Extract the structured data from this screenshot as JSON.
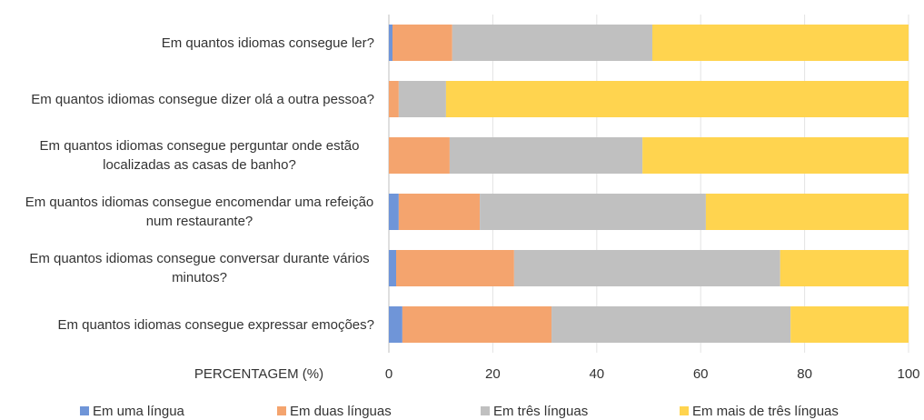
{
  "chart_data": {
    "type": "stacked_barh",
    "categories": [
      "Em quantos idiomas consegue ler?",
      "Em quantos idiomas consegue dizer olá a outra pessoa?",
      "Em quantos idiomas consegue perguntar onde estão localizadas as casas de banho?",
      "Em quantos idiomas consegue encomendar uma refeição num restaurante?",
      "Em quantos idiomas consegue conversar durante vários minutos?",
      "Em quantos idiomas consegue expressar emoções?"
    ],
    "series": [
      {
        "name": "Em uma língua",
        "color": "#6f95d8",
        "values": [
          0.7,
          0,
          0,
          1.9,
          1.4,
          2.6
        ]
      },
      {
        "name": "Em duas línguas",
        "color": "#f4a46e",
        "values": [
          11.5,
          1.9,
          11.7,
          15.6,
          22.7,
          28.7
        ]
      },
      {
        "name": "Em três línguas",
        "color": "#c0c0c0",
        "values": [
          38.5,
          9.1,
          37.1,
          43.5,
          51.2,
          46
        ]
      },
      {
        "name": "Em mais de três línguas",
        "color": "#ffd44f",
        "values": [
          49.3,
          89,
          51.2,
          39,
          24.7,
          22.7
        ]
      }
    ],
    "xlabel": "PERCENTAGEM (%)",
    "xlim": [
      0,
      100
    ],
    "xticks": [
      0,
      20,
      40,
      60,
      80,
      100
    ],
    "grid": true,
    "legend": "bottom"
  }
}
